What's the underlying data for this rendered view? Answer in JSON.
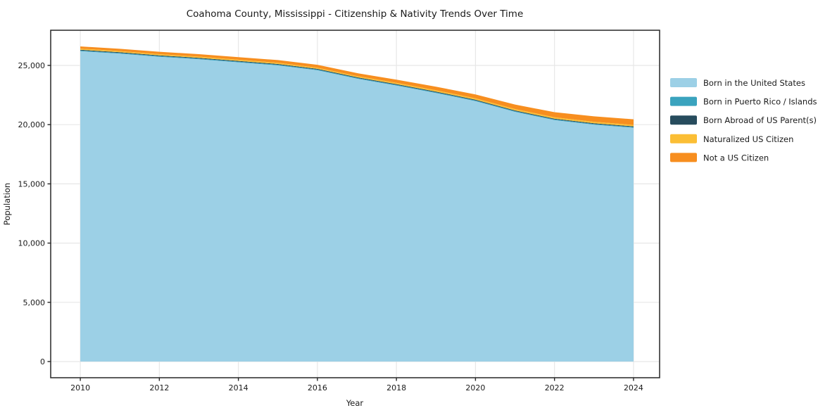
{
  "figure": {
    "background": "#ffffff"
  },
  "chart_data": {
    "type": "area",
    "stacked": true,
    "title": "Coahoma County, Mississippi - Citizenship & Nativity Trends Over Time",
    "xlabel": "Year",
    "ylabel": "Population",
    "x": [
      2010,
      2011,
      2012,
      2013,
      2014,
      2015,
      2016,
      2017,
      2018,
      2019,
      2020,
      2021,
      2022,
      2023,
      2024
    ],
    "series": [
      {
        "name": "Born in the United States",
        "color": "#9CD0E6",
        "values": [
          26200,
          25990,
          25730,
          25520,
          25260,
          25000,
          24590,
          23880,
          23300,
          22670,
          21990,
          21080,
          20380,
          20000,
          19735
        ]
      },
      {
        "name": "Born in Puerto Rico / Islands",
        "color": "#3AA3BE",
        "values": [
          60,
          60,
          60,
          60,
          60,
          60,
          60,
          60,
          60,
          60,
          60,
          60,
          60,
          60,
          60
        ]
      },
      {
        "name": "Born Abroad of US Parent(s)",
        "color": "#274C5D",
        "values": [
          60,
          60,
          60,
          60,
          60,
          60,
          60,
          60,
          60,
          60,
          60,
          60,
          60,
          60,
          60
        ]
      },
      {
        "name": "Naturalized US Citizen",
        "color": "#FBBE35",
        "values": [
          100,
          100,
          100,
          100,
          100,
          100,
          100,
          100,
          110,
          110,
          110,
          120,
          120,
          120,
          120
        ]
      },
      {
        "name": "Not a US Citizen",
        "color": "#F78E1F",
        "values": [
          180,
          190,
          200,
          210,
          220,
          230,
          240,
          250,
          270,
          300,
          330,
          380,
          430,
          460,
          475
        ]
      }
    ],
    "totals": [
      26600,
      26400,
      26150,
      25950,
      25700,
      25450,
      25050,
      24350,
      23800,
      23200,
      22550,
      21700,
      21050,
      20700,
      20450
    ],
    "xticks": {
      "values": [
        2010,
        2012,
        2014,
        2016,
        2018,
        2020,
        2022,
        2024
      ],
      "labels": [
        "2010",
        "2012",
        "2014",
        "2016",
        "2018",
        "2020",
        "2022",
        "2024"
      ]
    },
    "yticks": {
      "values": [
        0,
        5000,
        10000,
        15000,
        20000,
        25000
      ],
      "labels": [
        "0",
        "5,000",
        "10,000",
        "15,000",
        "20,000",
        "25,000"
      ]
    },
    "xlim": [
      2009.25,
      2024.66
    ],
    "ylim": [
      -1366,
      27968
    ],
    "grid": true,
    "legend": {
      "location": "right-outside",
      "frame": false
    }
  },
  "colors": {
    "grid": "#e7e7e7",
    "spine": "#262626",
    "tick": "#262626",
    "text": "#1a1a1a",
    "background": "#ffffff"
  }
}
